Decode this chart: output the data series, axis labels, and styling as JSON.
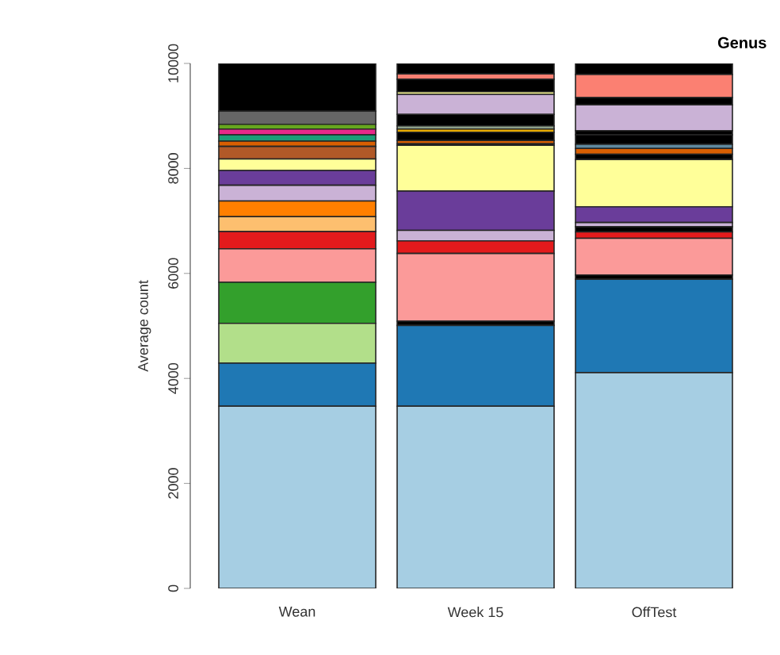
{
  "chart_data": {
    "type": "bar",
    "title": "Genus",
    "ylabel": "Average count",
    "stacked": true,
    "categories": [
      "Wean",
      "Week 15",
      "OffTest"
    ],
    "ylim": [
      0,
      10000
    ],
    "yticks": [
      0,
      2000,
      4000,
      6000,
      8000,
      10000
    ],
    "series": [
      {
        "color": "#a6cee3",
        "values": [
          3470,
          3470,
          4110
        ]
      },
      {
        "color": "#1f78b4",
        "values": [
          820,
          1540,
          1780
        ]
      },
      {
        "color": "#b2df8a",
        "values": [
          760,
          0,
          0
        ]
      },
      {
        "color": "#33a02c",
        "values": [
          780,
          0,
          0
        ]
      },
      {
        "color": "#000000",
        "values": [
          0,
          80,
          80
        ]
      },
      {
        "color": "#fb9a99",
        "values": [
          640,
          1290,
          700
        ]
      },
      {
        "color": "#e31a1c",
        "values": [
          330,
          240,
          120
        ]
      },
      {
        "color": "#fdbf6f",
        "values": [
          280,
          0,
          0
        ]
      },
      {
        "color": "#ff7f00",
        "values": [
          300,
          0,
          0
        ]
      },
      {
        "color": "#000000",
        "values": [
          0,
          0,
          100
        ]
      },
      {
        "color": "#cab2d6",
        "values": [
          300,
          200,
          80
        ]
      },
      {
        "color": "#6a3d9a",
        "values": [
          280,
          750,
          300
        ]
      },
      {
        "color": "#ffff99",
        "values": [
          220,
          870,
          900
        ]
      },
      {
        "color": "#b15928",
        "values": [
          240,
          0,
          0
        ]
      },
      {
        "color": "#000000",
        "values": [
          0,
          30,
          100
        ]
      },
      {
        "color": "#d95f02",
        "values": [
          100,
          60,
          110
        ]
      },
      {
        "color": "#1b9e77",
        "values": [
          120,
          0,
          0
        ]
      },
      {
        "color": "#5f8aa0",
        "values": [
          0,
          0,
          80
        ]
      },
      {
        "color": "#000000",
        "values": [
          0,
          160,
          180
        ]
      },
      {
        "color": "#e6ab02",
        "values": [
          0,
          60,
          0
        ]
      },
      {
        "color": "#e7298a",
        "values": [
          110,
          0,
          0
        ]
      },
      {
        "color": "#66a61e",
        "values": [
          90,
          0,
          0
        ]
      },
      {
        "color": "#8da08a",
        "values": [
          0,
          60,
          0
        ]
      },
      {
        "color": "#666666",
        "values": [
          250,
          0,
          0
        ]
      },
      {
        "color": "#000000",
        "values": [
          0,
          220,
          80
        ]
      },
      {
        "color": "#cab2d6",
        "values": [
          0,
          380,
          490
        ]
      },
      {
        "color": "#ffff99",
        "values": [
          0,
          50,
          0
        ]
      },
      {
        "color": "#000000",
        "values": [
          0,
          240,
          140
        ]
      },
      {
        "color": "#fb8072",
        "values": [
          0,
          100,
          440
        ]
      },
      {
        "color": "#000000",
        "values": [
          910,
          200,
          210
        ]
      }
    ]
  }
}
